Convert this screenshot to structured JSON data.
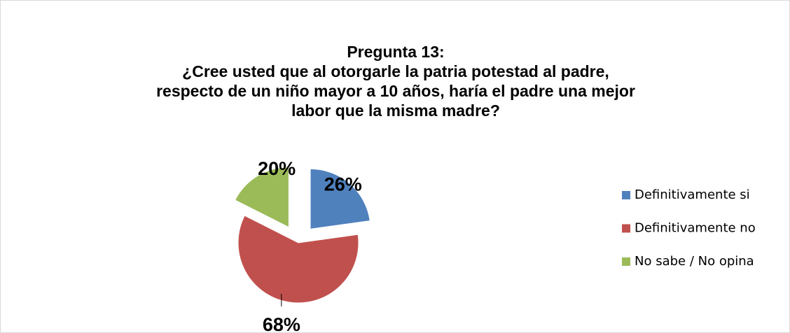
{
  "chart_data": {
    "type": "pie",
    "title": [
      "Pregunta 13:",
      "¿Cree usted que al otorgarle la patria potestad al padre,",
      "respecto de un niño mayor a 10 años, haría el padre una mejor",
      "labor que la misma madre?"
    ],
    "categories": [
      "Definitivamente si",
      "Definitivamente no",
      "No sabe / No opina"
    ],
    "values": [
      26,
      68,
      20
    ],
    "value_labels": [
      "26%",
      "68%",
      "20%"
    ],
    "colors": [
      "#4f81bd",
      "#c0504d",
      "#9bbb59"
    ],
    "legend": "right"
  }
}
